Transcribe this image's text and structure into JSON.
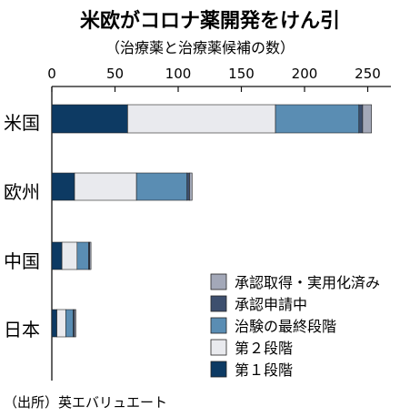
{
  "chart_data": {
    "type": "bar",
    "orientation": "horizontal",
    "stacked": true,
    "title": "米欧がコロナ薬開発をけん引",
    "subtitle": "（治療薬と治療薬候補の数）",
    "source": "（出所）英エバリュエート",
    "categories": [
      "米国",
      "欧州",
      "中国",
      "日本"
    ],
    "x_ticks": [
      0,
      50,
      100,
      150,
      200,
      250
    ],
    "xlim": [
      0,
      265
    ],
    "legend_position": "bottom-right",
    "series": [
      {
        "name": "第１段階",
        "color": "#0d3a63",
        "values": [
          60,
          18,
          8,
          4
        ]
      },
      {
        "name": "第２段階",
        "color": "#e9eaee",
        "values": [
          117,
          49,
          12,
          7
        ]
      },
      {
        "name": "治験の最終段階",
        "color": "#5a8db3",
        "values": [
          66,
          40,
          9,
          6
        ]
      },
      {
        "name": "承認申請中",
        "color": "#3d4f6e",
        "values": [
          3,
          2,
          1,
          1
        ]
      },
      {
        "name": "承認取得・実用化済み",
        "color": "#a3a8b8",
        "values": [
          7,
          2,
          1,
          1
        ]
      }
    ]
  }
}
